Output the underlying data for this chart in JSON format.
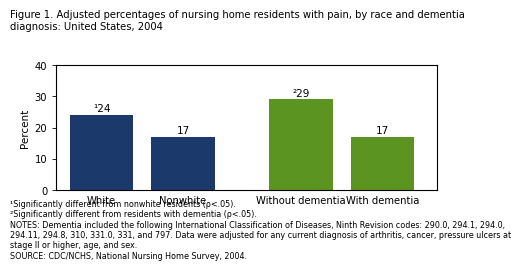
{
  "title": "Figure 1. Adjusted percentages of nursing home residents with pain, by race and dementia\ndiagnosis: United States, 2004",
  "categories": [
    "White",
    "Nonwhite",
    "Without dementia",
    "With dementia"
  ],
  "values": [
    24,
    17,
    29,
    17
  ],
  "bar_colors": [
    "#1b3a6b",
    "#1b3a6b",
    "#5c9422",
    "#5c9422"
  ],
  "bar_labels": [
    "¹24",
    "17",
    "²29",
    "17"
  ],
  "ylabel": "Percent",
  "ylim": [
    0,
    40
  ],
  "yticks": [
    0,
    10,
    20,
    30,
    40
  ],
  "footnote1": "¹Significantly different from nonwhite residents (ρ<.05).",
  "footnote2": "²Significantly different from residents with dementia (ρ<.05).",
  "footnote3": "NOTES: Dementia included the following International Classification of Diseases, Ninth Revision codes: 290.0, 294.1, 294.0,",
  "footnote4": "294.11, 294.8, 310, 331.0, 331, and 797. Data were adjusted for any current diagnosis of arthritis, cancer, pressure ulcers at",
  "footnote5": "stage II or higher, age, and sex.",
  "footnote6": "SOURCE: CDC/NCHS, National Nursing Home Survey, 2004.",
  "title_fontsize": 7.2,
  "label_fontsize": 7.5,
  "tick_fontsize": 7.2,
  "footnote_fontsize": 5.8,
  "bar_positions": [
    0.5,
    1.4,
    2.7,
    3.6
  ],
  "bar_width": 0.7,
  "xlim": [
    0.0,
    4.2
  ]
}
